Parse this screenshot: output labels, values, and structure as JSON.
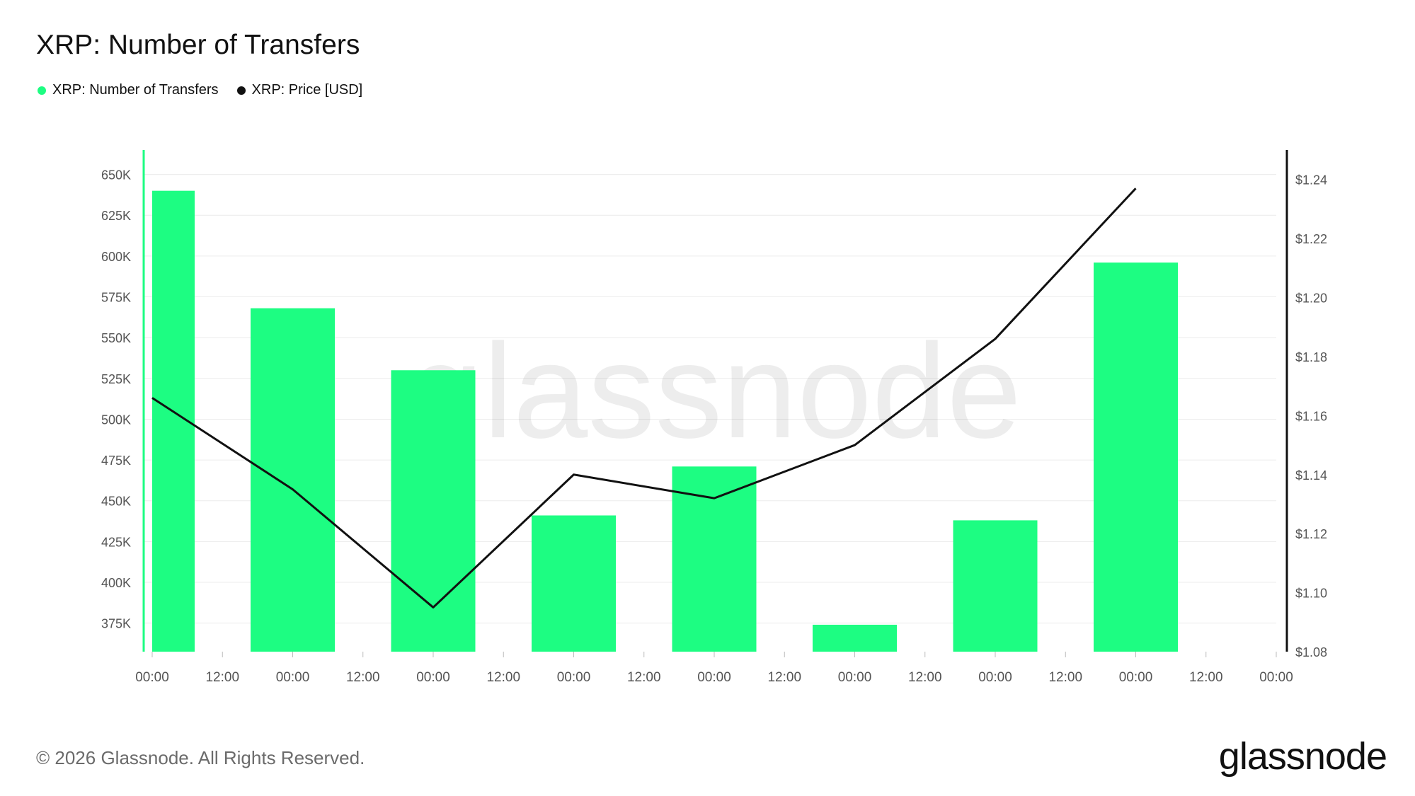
{
  "title": "XRP: Number of Transfers",
  "legend": [
    {
      "label": "XRP: Number of Transfers",
      "color": "#1dfd82"
    },
    {
      "label": "XRP: Price [USD]",
      "color": "#111111"
    }
  ],
  "watermark": "glassnode",
  "footer": {
    "copyright": "© 2026 Glassnode. All Rights Reserved.",
    "brand": "glassnode"
  },
  "chart_data": {
    "type": "bar",
    "x_tick_labels": [
      "00:00",
      "12:00",
      "00:00",
      "12:00",
      "00:00",
      "12:00",
      "00:00",
      "12:00",
      "00:00",
      "12:00",
      "00:00",
      "12:00",
      "00:00",
      "12:00",
      "00:00",
      "12:00",
      "00:00"
    ],
    "series": [
      {
        "name": "XRP: Number of Transfers",
        "type": "bar",
        "axis": "left",
        "color": "#1dfd82",
        "values": [
          640000,
          568000,
          530000,
          441000,
          471000,
          374000,
          438000,
          596000
        ]
      },
      {
        "name": "XRP: Price [USD]",
        "type": "line",
        "axis": "right",
        "color": "#111111",
        "values": [
          1.166,
          1.135,
          1.095,
          1.14,
          1.132,
          1.15,
          1.186,
          1.237
        ]
      }
    ],
    "y_left": {
      "min": 357500,
      "max": 665000,
      "ticks": [
        375000,
        400000,
        425000,
        450000,
        475000,
        500000,
        525000,
        550000,
        575000,
        600000,
        625000,
        650000
      ],
      "tick_labels": [
        "375K",
        "400K",
        "425K",
        "450K",
        "475K",
        "500K",
        "525K",
        "550K",
        "575K",
        "600K",
        "625K",
        "650K"
      ]
    },
    "y_right": {
      "min": 1.08,
      "max": 1.25,
      "ticks": [
        1.08,
        1.1,
        1.12,
        1.14,
        1.16,
        1.18,
        1.2,
        1.22,
        1.24
      ],
      "tick_labels": [
        "$1.08",
        "$1.10",
        "$1.12",
        "$1.14",
        "$1.16",
        "$1.18",
        "$1.20",
        "$1.22",
        "$1.24"
      ]
    },
    "grid": true,
    "legend_position": "top-left"
  }
}
